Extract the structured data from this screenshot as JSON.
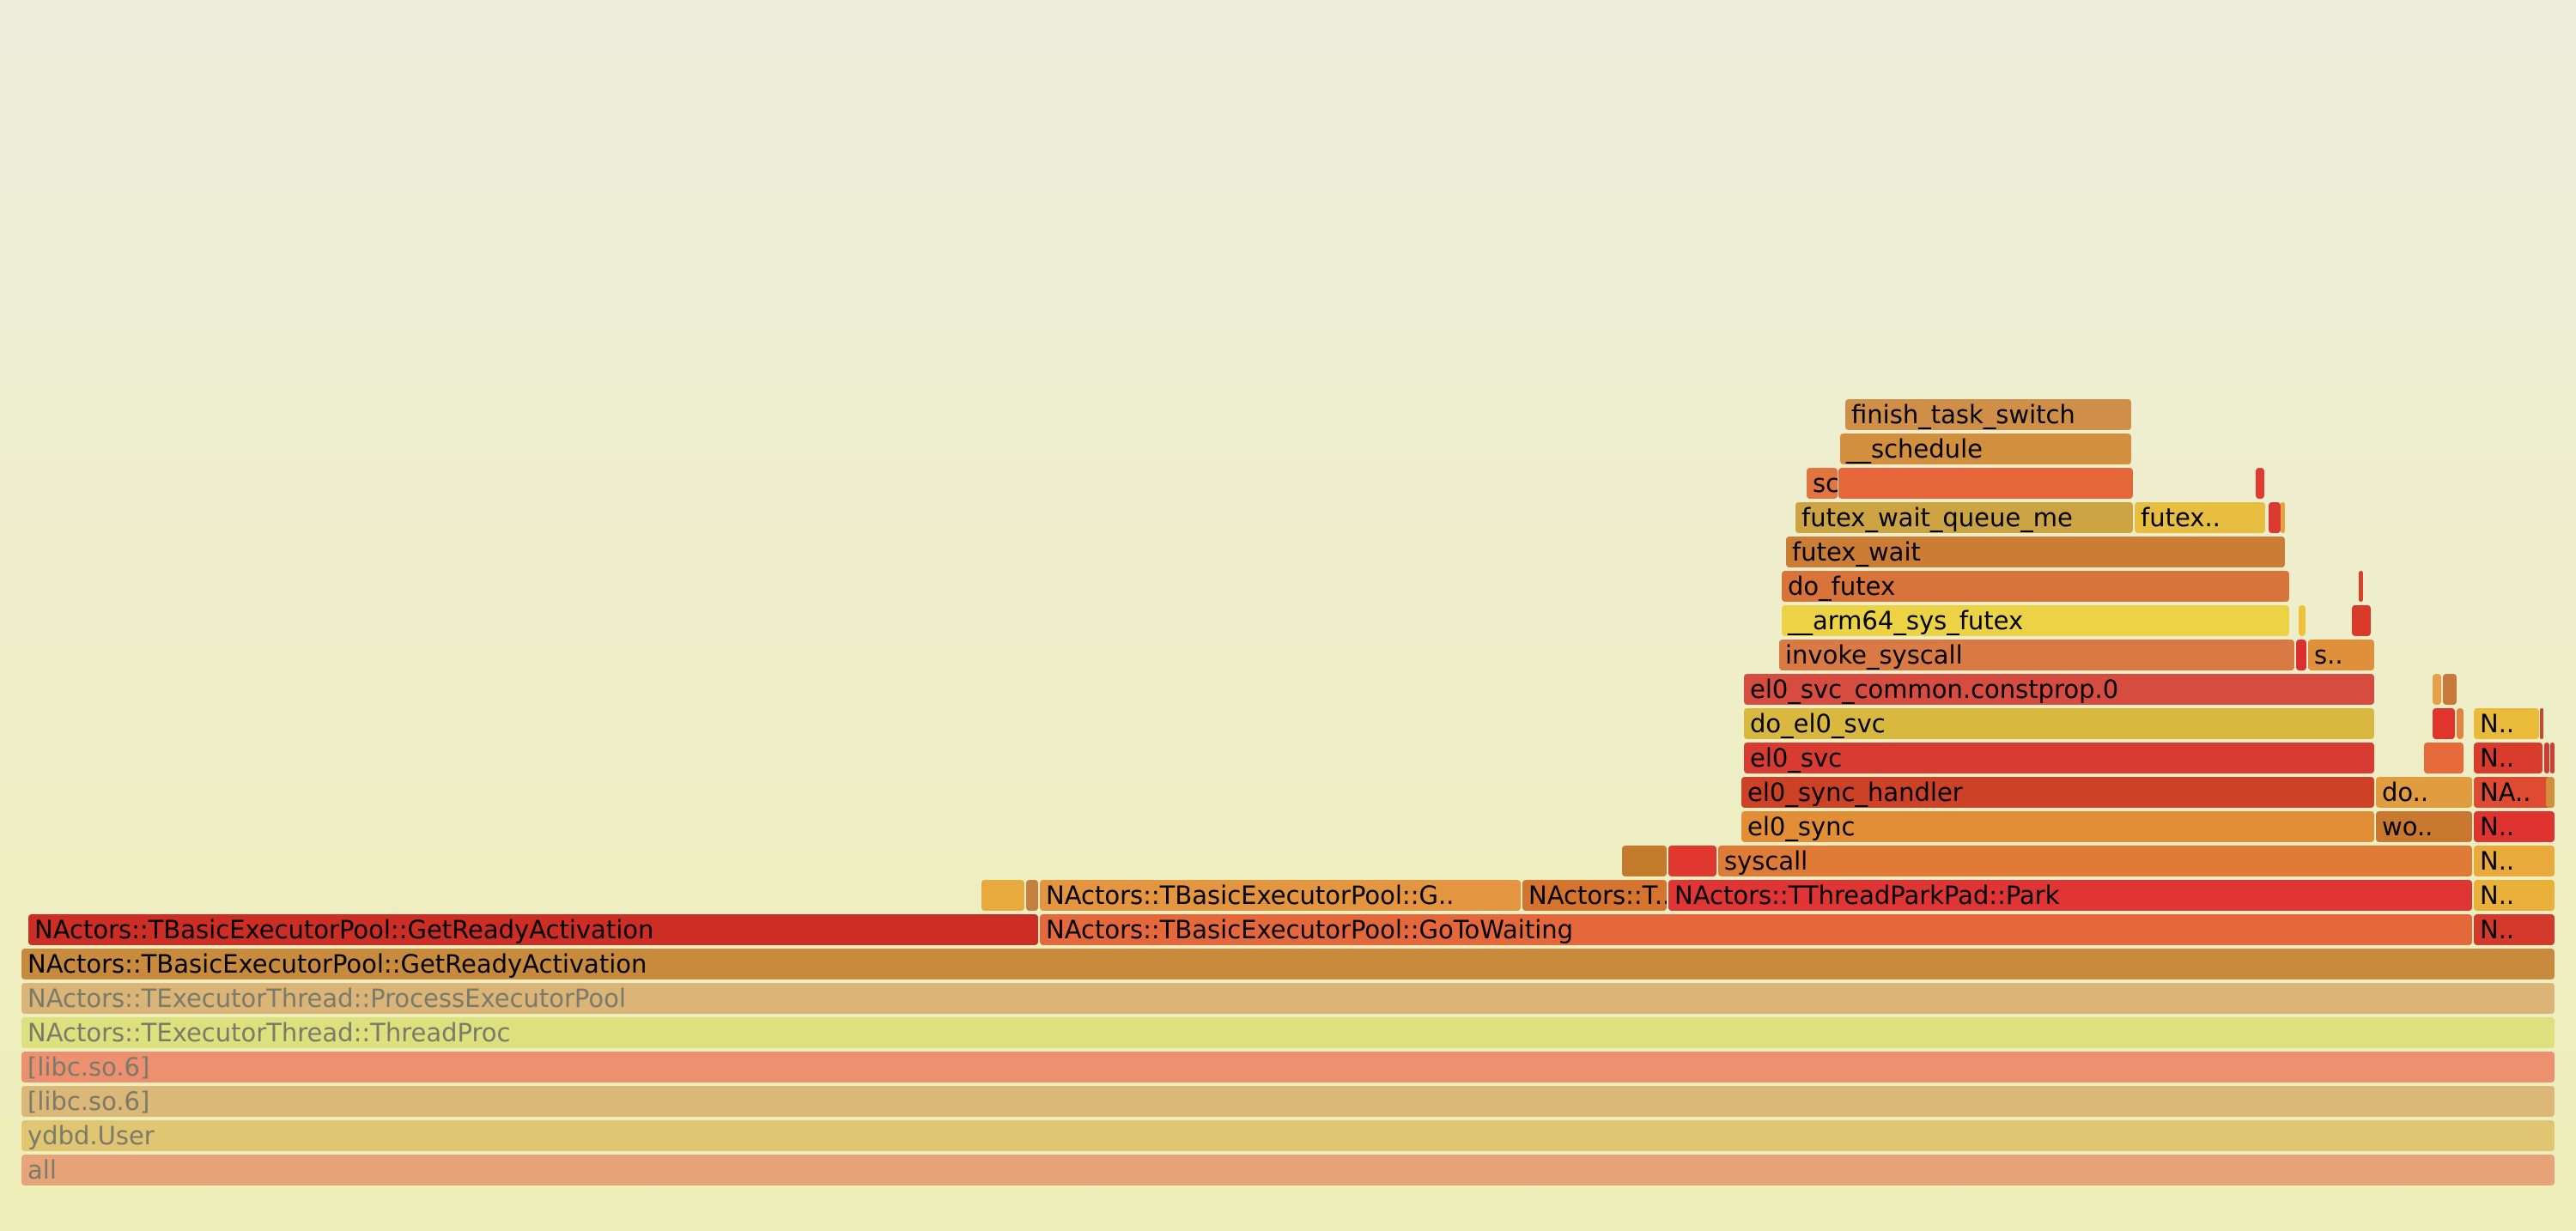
{
  "frames": [
    {
      "name": "all",
      "color": "#e8a479",
      "muted": true
    },
    {
      "name": "ydbd.User",
      "color": "#e0c572",
      "muted": true
    },
    {
      "name": "[libc.so.6]",
      "color": "#dbb778",
      "muted": true
    },
    {
      "name": "[libc.so.6]",
      "color": "#ec9070",
      "muted": true
    },
    {
      "name": "NActors::TExecutorThread::ThreadProc",
      "color": "#dedf7d",
      "muted": true
    },
    {
      "name": "NActors::TExecutorThread::ProcessExecutorPool",
      "color": "#dbb577",
      "muted": true
    },
    {
      "name": "NActors::TBasicExecutorPool::GetReadyActivation",
      "color": "#c88a3c"
    },
    {
      "name": "NActors::TBasicExecutorPool::GetReadyActivation",
      "color": "#cc2d24"
    },
    {
      "name": "NActors::TBasicExecutorPool::GoToWaiting",
      "color": "#e5683c"
    },
    {
      "name": "N..",
      "color": "#d43a2c"
    },
    {
      "name": "",
      "color": "#e8aa3e"
    },
    {
      "name": "",
      "color": "#c3803e"
    },
    {
      "name": "NActors::TBasicExecutorPool::G..",
      "color": "#e39540"
    },
    {
      "name": "NActors::T..",
      "color": "#d4742e"
    },
    {
      "name": "NActors::TThreadParkPad::Park",
      "color": "#df3635"
    },
    {
      "name": "N..",
      "color": "#e9b13a"
    },
    {
      "name": "",
      "color": "#c37c2c"
    },
    {
      "name": "",
      "color": "#e0372f"
    },
    {
      "name": "syscall",
      "color": "#df7a37"
    },
    {
      "name": "N..",
      "color": "#e9a93b"
    },
    {
      "name": "el0_sync",
      "color": "#e18e37"
    },
    {
      "name": "wo..",
      "color": "#c8782f"
    },
    {
      "name": "N..",
      "color": "#df3332"
    },
    {
      "name": "el0_sync_handler",
      "color": "#cd4126"
    },
    {
      "name": "do..",
      "color": "#e19c3f"
    },
    {
      "name": "NA..",
      "color": "#de4b32"
    },
    {
      "name": "",
      "color": "#d3903a"
    },
    {
      "name": "el0_svc",
      "color": "#d73b32"
    },
    {
      "name": "",
      "color": "#e76a3a"
    },
    {
      "name": "N..",
      "color": "#d93b2c"
    },
    {
      "name": "",
      "color": "#d33b32"
    },
    {
      "name": "",
      "color": "#c94235"
    },
    {
      "name": "do_el0_svc",
      "color": "#d9b840"
    },
    {
      "name": "",
      "color": "#e0352c"
    },
    {
      "name": "",
      "color": "#e3843e"
    },
    {
      "name": "N..",
      "color": "#eabb3a"
    },
    {
      "name": "",
      "color": "#c84a2c"
    },
    {
      "name": "el0_svc_common.constprop.0",
      "color": "#d74c40"
    },
    {
      "name": "",
      "color": "#e7a048"
    },
    {
      "name": "",
      "color": "#c8783a"
    },
    {
      "name": "invoke_syscall",
      "color": "#d97a44"
    },
    {
      "name": "",
      "color": "#dc3030"
    },
    {
      "name": "s..",
      "color": "#e08f3a"
    },
    {
      "name": "__arm64_sys_futex",
      "color": "#ecd346"
    },
    {
      "name": "",
      "color": "#f0c23a"
    },
    {
      "name": "",
      "color": "#da3a2a"
    },
    {
      "name": "do_futex",
      "color": "#d8743a"
    },
    {
      "name": "",
      "color": "#d8402c"
    },
    {
      "name": "futex_wait",
      "color": "#cb7c35"
    },
    {
      "name": "futex_wait_queue_me",
      "color": "#cca444"
    },
    {
      "name": "futex..",
      "color": "#e7be40"
    },
    {
      "name": "",
      "color": "#da3a30"
    },
    {
      "name": "",
      "color": "#e8a040"
    },
    {
      "name": "",
      "color": "#e13a33"
    },
    {
      "name": "schedule",
      "color": "#e1753f"
    },
    {
      "name": "",
      "color": "#e6683a"
    },
    {
      "name": "__schedule",
      "color": "#d28f3e"
    },
    {
      "name": "finish_task_switch",
      "color": "#cf8f48"
    }
  ]
}
